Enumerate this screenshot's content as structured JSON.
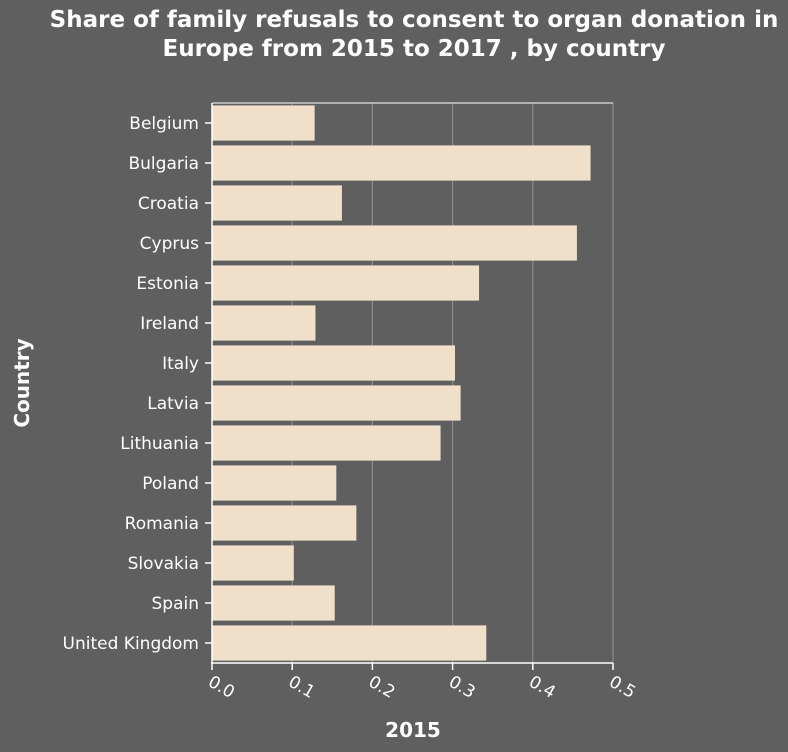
{
  "chart_data": {
    "type": "bar",
    "orientation": "horizontal",
    "title": "Share of family refusals to consent to organ donation in Europe from 2015 to 2017 , by country",
    "xlabel": "2015",
    "ylabel": "Country",
    "categories": [
      "Belgium",
      "Bulgaria",
      "Croatia",
      "Cyprus",
      "Estonia",
      "Ireland",
      "Italy",
      "Latvia",
      "Lithuania",
      "Poland",
      "Romania",
      "Slovakia",
      "Spain",
      "United Kingdom"
    ],
    "values": [
      0.128,
      0.472,
      0.162,
      0.455,
      0.333,
      0.129,
      0.303,
      0.31,
      0.285,
      0.155,
      0.18,
      0.102,
      0.153,
      0.342
    ],
    "xlim": [
      0,
      0.5
    ],
    "xticks": [
      "0.0",
      "0.1",
      "0.2",
      "0.3",
      "0.4",
      "0.5"
    ],
    "grid": "vertical",
    "colors": {
      "background": "#5f5f5f",
      "bar": "#f0e0ca",
      "grid": "#8c8c8c",
      "text": "#ffffff"
    }
  }
}
